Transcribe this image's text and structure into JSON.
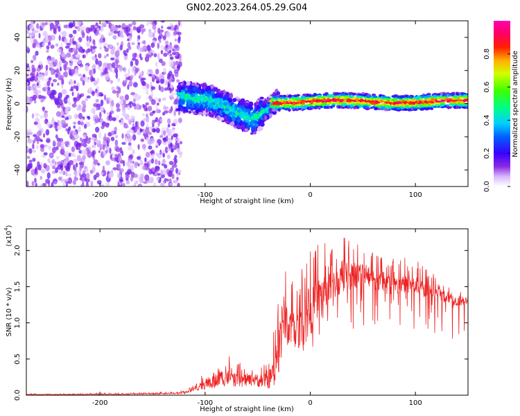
{
  "title": "GN02.2023.264.05.29.G04",
  "colors": {
    "line": "#ee2222",
    "axis": "#000000",
    "background": "#ffffff"
  },
  "chart_data": [
    {
      "type": "heatmap",
      "name": "spectrogram",
      "xlabel": "Height of straight line (km)",
      "ylabel": "Frequency (Hz)",
      "xlim": [
        -270,
        150
      ],
      "ylim": [
        -50,
        50
      ],
      "x_ticks": [
        "-200",
        "-100",
        "0",
        "100"
      ],
      "x_tick_values": [
        -200,
        -100,
        0,
        100
      ],
      "y_ticks": [
        "40",
        "20",
        "0",
        "-20",
        "-40"
      ],
      "y_tick_values": [
        40,
        20,
        0,
        -20,
        -40
      ],
      "colorbar": {
        "label": "Normalized spectral amplitude",
        "range": [
          0,
          1
        ],
        "ticks": [
          "0.0",
          "0.2",
          "0.4",
          "0.6",
          "0.8"
        ],
        "tick_values": [
          0.0,
          0.2,
          0.4,
          0.6,
          0.8
        ],
        "colormap": "rainbow (white-violet-blue-cyan-green-yellow-red-magenta)"
      },
      "regions": [
        {
          "x_range": [
            -270,
            -125
          ],
          "freq_range": [
            -50,
            50
          ],
          "amplitude": "low, scattered noise (0.05-0.15)"
        },
        {
          "x_range": [
            -125,
            -35
          ],
          "freq_center": [
            5,
            0,
            -8
          ],
          "amplitude": "0.2-0.5, broad band descending to about -13 Hz near x=-55"
        },
        {
          "x_range": [
            -35,
            150
          ],
          "freq_center": 1,
          "amplitude": "0.5-0.9, narrow band near 0-2 Hz"
        }
      ]
    },
    {
      "type": "line",
      "name": "snr",
      "xlabel": "Height of straight line (km)",
      "ylabel": "SNR (10 * v/v)",
      "y_multiplier": "(x10⁴)",
      "y_multiplier_base": "(x10",
      "y_multiplier_exp": "4",
      "xlim": [
        -270,
        150
      ],
      "ylim": [
        0,
        2.3
      ],
      "x_ticks": [
        "-200",
        "-100",
        "0",
        "100"
      ],
      "x_tick_values": [
        -200,
        -100,
        0,
        100
      ],
      "y_ticks": [
        "0.0",
        "0.5",
        "1.0",
        "1.5",
        "2.0"
      ],
      "y_tick_values": [
        0.0,
        0.5,
        1.0,
        1.5,
        2.0
      ],
      "series": [
        {
          "color": "#ee2222",
          "x": [
            -270,
            -200,
            -150,
            -120,
            -110,
            -100,
            -90,
            -80,
            -70,
            -60,
            -50,
            -40,
            -35,
            -30,
            -25,
            -20,
            -15,
            -10,
            -5,
            0,
            5,
            10,
            20,
            30,
            40,
            50,
            60,
            70,
            80,
            90,
            100,
            110,
            120,
            130,
            140,
            150
          ],
          "y": [
            0.01,
            0.01,
            0.02,
            0.03,
            0.08,
            0.15,
            0.2,
            0.25,
            0.2,
            0.22,
            0.2,
            0.2,
            0.25,
            0.6,
            1.1,
            0.9,
            0.85,
            0.95,
            1.0,
            1.1,
            1.3,
            1.4,
            1.5,
            1.6,
            1.65,
            1.7,
            1.6,
            1.55,
            1.5,
            1.55,
            1.5,
            1.45,
            1.4,
            1.35,
            1.3,
            1.3
          ],
          "envelope": [
            0.02,
            0.03,
            0.04,
            0.06,
            0.15,
            0.35,
            0.55,
            0.6,
            0.45,
            0.45,
            0.45,
            0.5,
            0.9,
            2.2,
            1.9,
            1.8,
            1.6,
            1.7,
            1.9,
            2.0,
            2.1,
            2.15,
            2.05,
            2.25,
            2.15,
            2.1,
            2.0,
            1.95,
            1.9,
            1.95,
            1.9,
            1.75,
            1.65,
            1.55,
            1.5,
            1.45
          ]
        }
      ]
    }
  ]
}
